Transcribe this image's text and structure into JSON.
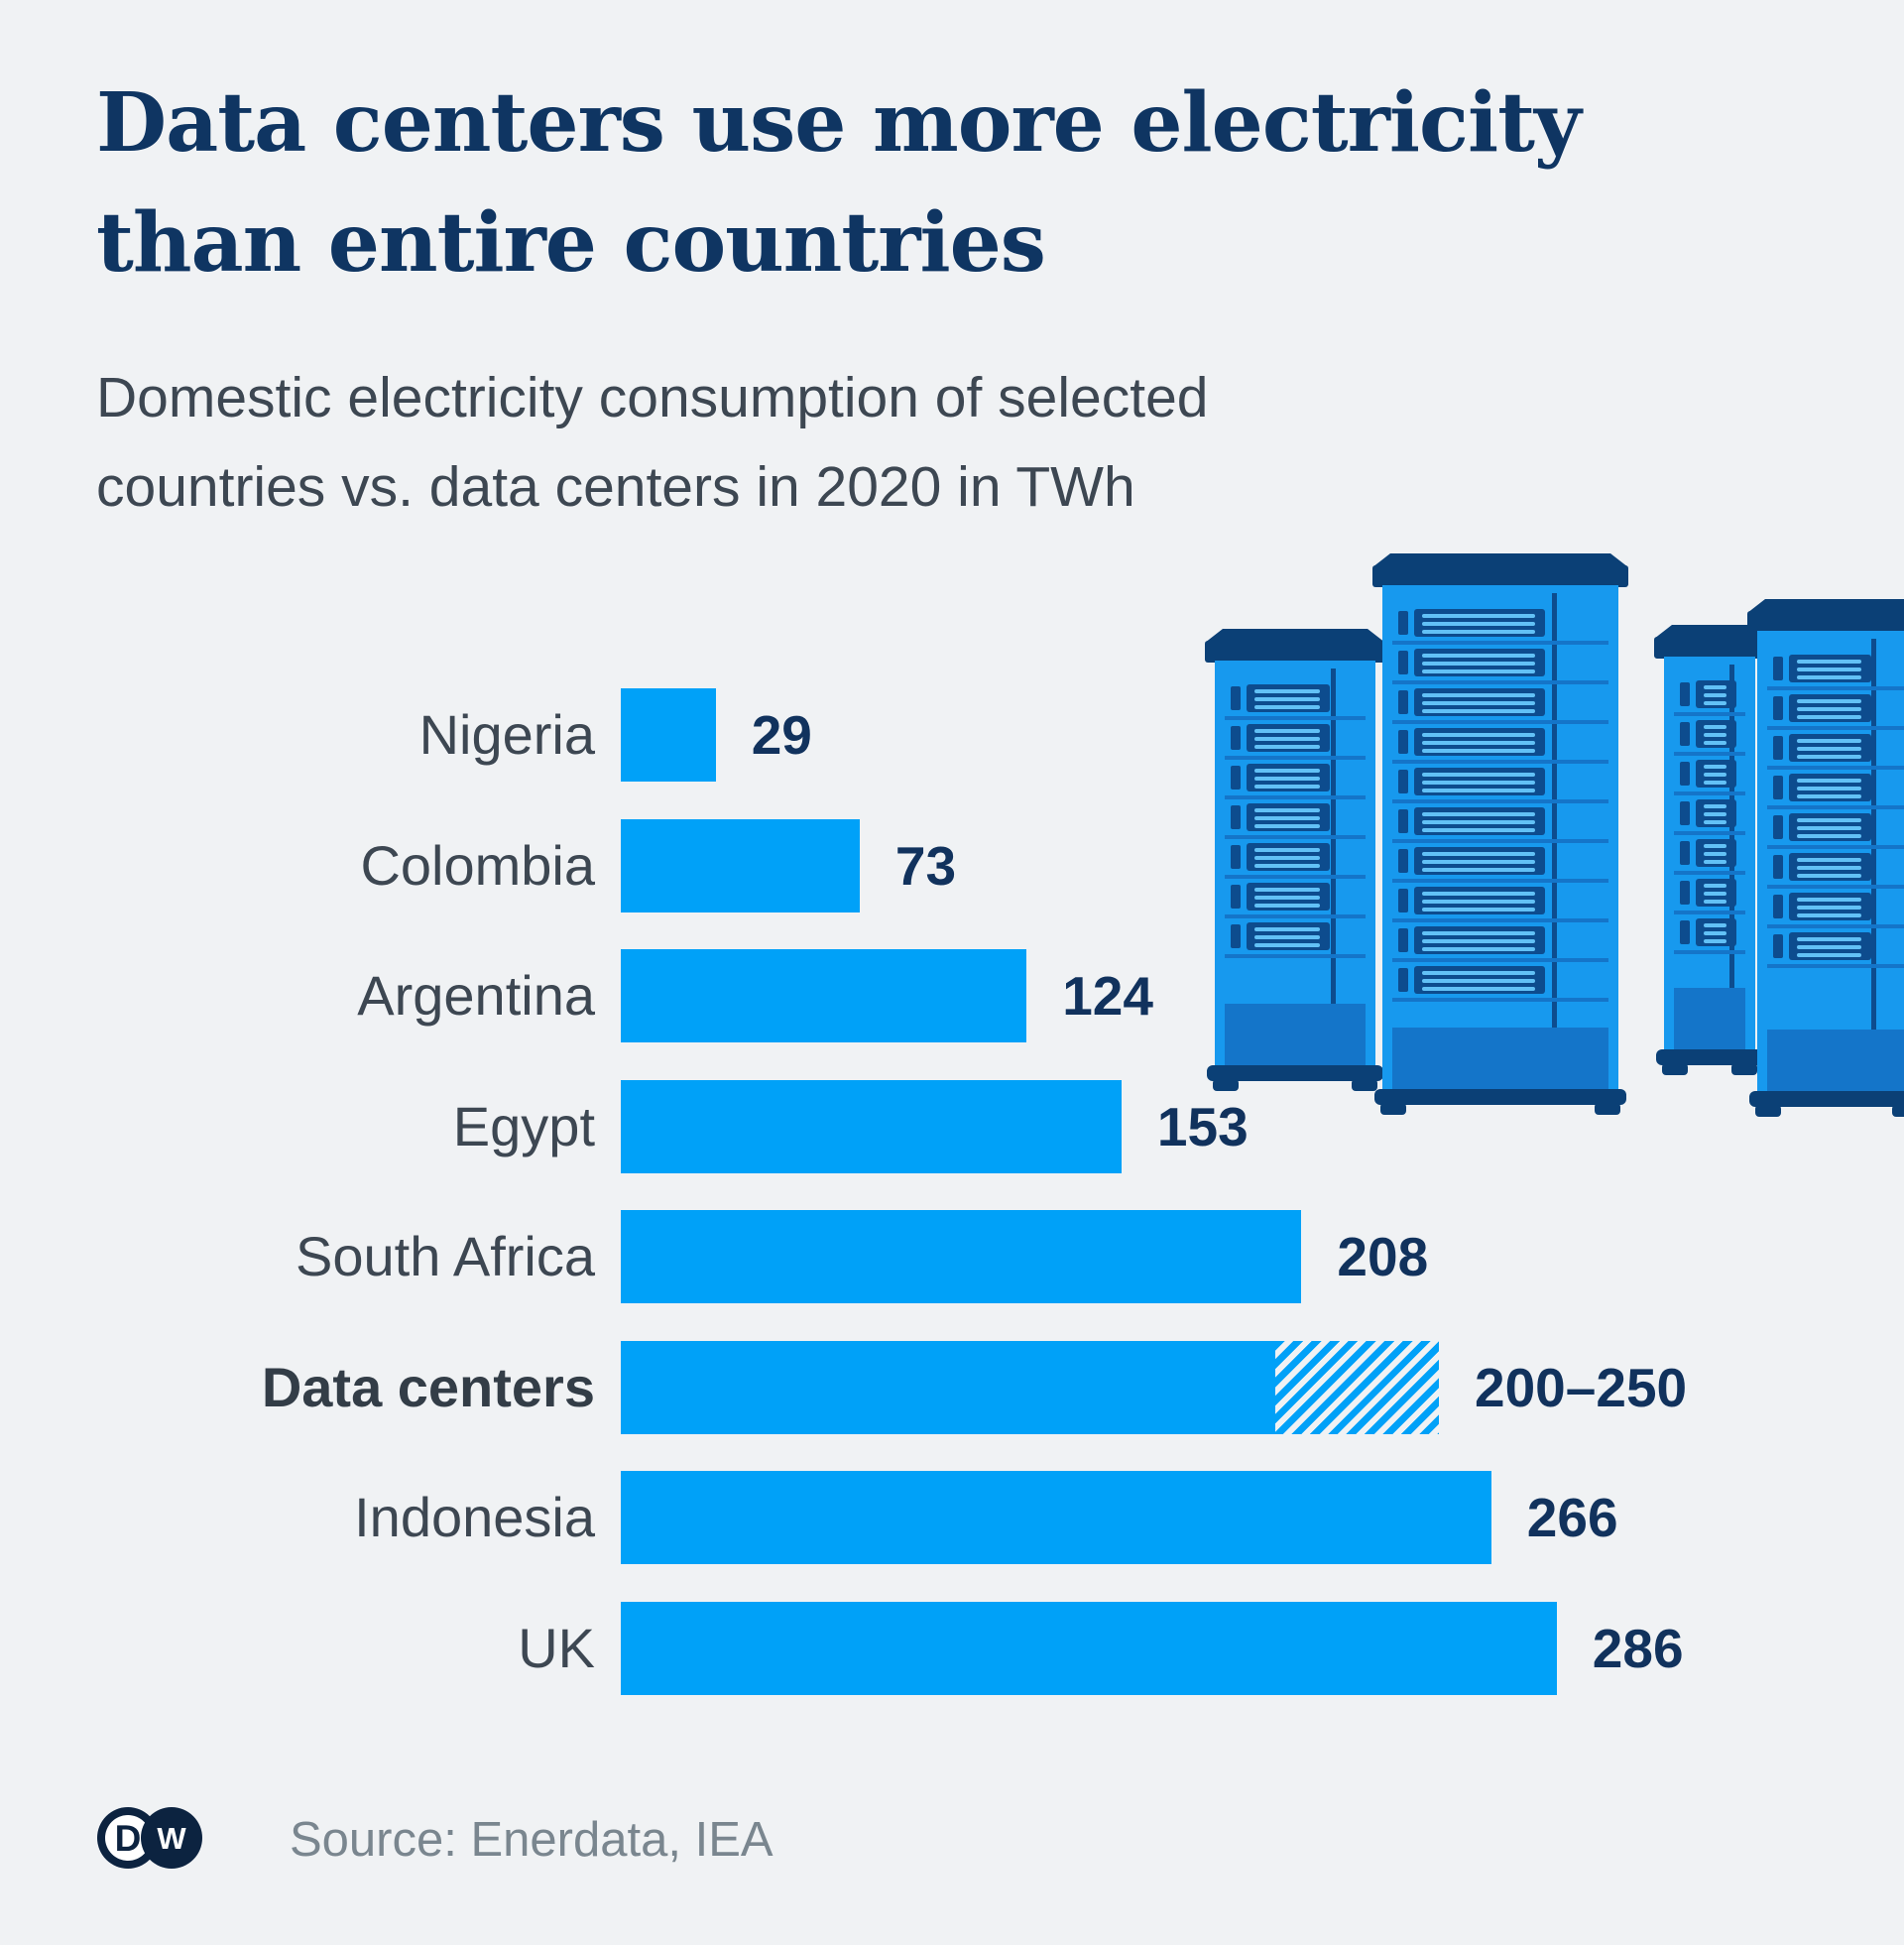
{
  "theme": {
    "bg": "#f0f2f4",
    "bar": "#00a1f8",
    "navy_title": "#0f3562",
    "navy_value": "#11325d",
    "slate": "#3d4752",
    "source_gray": "#7a868f",
    "logo_navy": "#0c2340",
    "srv_bright": "#1799ee",
    "srv_mid": "#1475c9",
    "srv_navy": "#0d4c8e",
    "srv_deep": "#0b4076",
    "srv_light": "#62c1f6"
  },
  "header": {
    "title_line1": "Data centers use more electricity",
    "title_line2": "than entire countries",
    "subtitle_line1": "Domestic electricity consumption of selected",
    "subtitle_line2": "countries vs. data centers in 2020 in TWh"
  },
  "chart_data": {
    "type": "bar",
    "orientation": "horizontal",
    "unit": "TWh",
    "xlim": [
      0,
      290
    ],
    "grid": false,
    "legend": "none",
    "categories": [
      "Nigeria",
      "Colombia",
      "Argentina",
      "Egypt",
      "South Africa",
      "Data centers",
      "Indonesia",
      "UK"
    ],
    "rows": [
      {
        "label": "Nigeria",
        "value": 29,
        "display": "29"
      },
      {
        "label": "Colombia",
        "value": 73,
        "display": "73"
      },
      {
        "label": "Argentina",
        "value": 124,
        "display": "124"
      },
      {
        "label": "Egypt",
        "value": 153,
        "display": "153"
      },
      {
        "label": "South Africa",
        "value": 208,
        "display": "208"
      },
      {
        "label": "Data centers",
        "value_min": 200,
        "value_max": 250,
        "display": "200–250",
        "bold": true,
        "hatched": true
      },
      {
        "label": "Indonesia",
        "value": 266,
        "display": "266"
      },
      {
        "label": "UK",
        "value": 286,
        "display": "286"
      }
    ]
  },
  "illustration": {
    "name": "server-racks",
    "rack_count": 4
  },
  "footer": {
    "logo_d": "D",
    "logo_w": "W",
    "source": "Source: Enerdata, IEA"
  }
}
